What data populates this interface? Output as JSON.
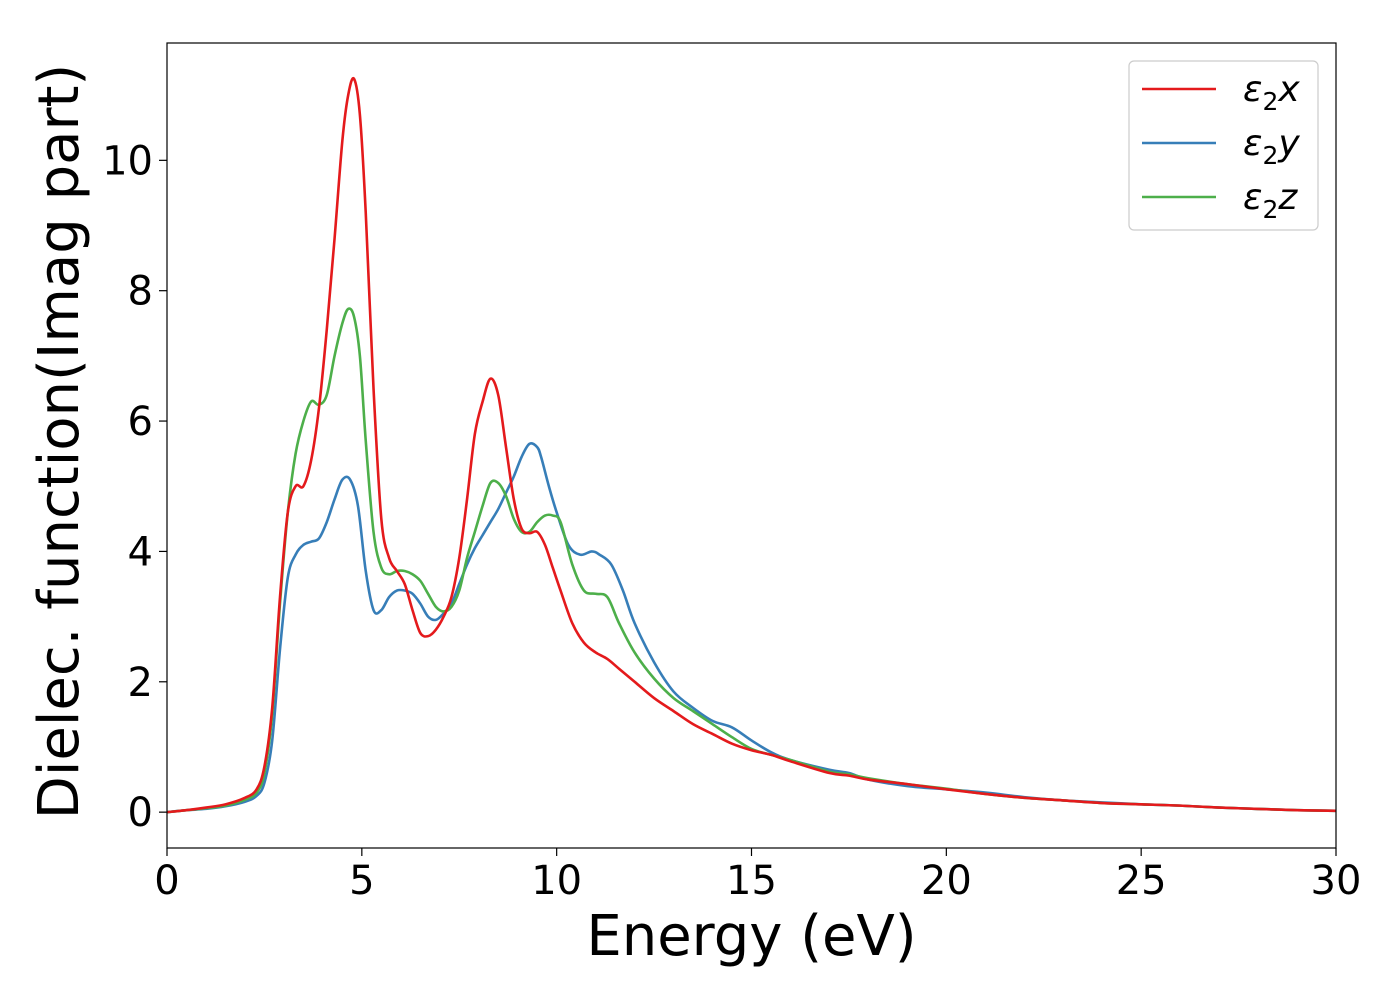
{
  "chart_data": {
    "type": "line",
    "title": "",
    "xlabel": "Energy (eV)",
    "ylabel": "Dielec. function(Imag part)",
    "xlim": [
      0,
      30
    ],
    "ylim": [
      -0.55,
      11.8
    ],
    "xticks": [
      0,
      5,
      10,
      15,
      20,
      25,
      30
    ],
    "yticks": [
      0,
      2,
      4,
      6,
      8,
      10
    ],
    "grid": false,
    "legend_position": "top-right",
    "series": [
      {
        "name": "ε₂x",
        "legend_main": "ε",
        "legend_sub": "2",
        "legend_suffix": "x",
        "color": "#e41a1c",
        "x": [
          0,
          0.5,
          1,
          1.5,
          2,
          2.3,
          2.5,
          2.7,
          2.9,
          3.1,
          3.3,
          3.5,
          3.7,
          3.9,
          4.1,
          4.3,
          4.5,
          4.65,
          4.8,
          4.95,
          5.1,
          5.3,
          5.5,
          5.7,
          5.9,
          6.1,
          6.3,
          6.5,
          6.7,
          6.9,
          7.1,
          7.3,
          7.5,
          7.7,
          7.9,
          8.1,
          8.3,
          8.5,
          8.7,
          8.9,
          9.1,
          9.3,
          9.5,
          9.7,
          9.9,
          10.1,
          10.4,
          10.7,
          11,
          11.3,
          11.6,
          12,
          12.5,
          13,
          13.5,
          14,
          14.5,
          15,
          15.5,
          16,
          17,
          17.5,
          18,
          19,
          20,
          21,
          22,
          23,
          24,
          25,
          26,
          27,
          28,
          29,
          30
        ],
        "y": [
          0.0,
          0.03,
          0.07,
          0.12,
          0.22,
          0.35,
          0.7,
          1.6,
          3.3,
          4.6,
          5.0,
          5.0,
          5.4,
          6.2,
          7.4,
          8.8,
          10.3,
          11.0,
          11.25,
          10.7,
          9.2,
          6.5,
          4.5,
          3.9,
          3.7,
          3.5,
          3.1,
          2.75,
          2.7,
          2.8,
          3.0,
          3.3,
          3.9,
          4.8,
          5.8,
          6.3,
          6.65,
          6.4,
          5.6,
          4.8,
          4.35,
          4.28,
          4.3,
          4.1,
          3.75,
          3.4,
          2.9,
          2.6,
          2.45,
          2.35,
          2.2,
          2.0,
          1.75,
          1.55,
          1.35,
          1.2,
          1.05,
          0.95,
          0.88,
          0.78,
          0.6,
          0.56,
          0.5,
          0.43,
          0.35,
          0.28,
          0.22,
          0.18,
          0.14,
          0.12,
          0.1,
          0.07,
          0.05,
          0.03,
          0.02
        ]
      },
      {
        "name": "ε₂y",
        "legend_main": "ε",
        "legend_sub": "2",
        "legend_suffix": "y",
        "color": "#377eb8",
        "x": [
          0,
          0.5,
          1,
          1.5,
          2,
          2.3,
          2.5,
          2.7,
          2.9,
          3.1,
          3.3,
          3.5,
          3.7,
          3.9,
          4.1,
          4.3,
          4.5,
          4.7,
          4.9,
          5.1,
          5.3,
          5.5,
          5.7,
          5.9,
          6.1,
          6.3,
          6.5,
          6.7,
          6.9,
          7.1,
          7.3,
          7.5,
          7.7,
          7.9,
          8.1,
          8.3,
          8.5,
          8.7,
          8.9,
          9.1,
          9.3,
          9.5,
          9.6,
          9.8,
          10,
          10.3,
          10.6,
          10.9,
          11.1,
          11.4,
          11.7,
          12,
          12.5,
          13,
          13.5,
          14,
          14.5,
          15,
          15.5,
          16,
          17,
          17.5,
          18,
          19,
          20,
          21,
          22,
          23,
          24,
          25,
          26,
          27,
          28,
          29,
          30
        ],
        "y": [
          0.0,
          0.03,
          0.05,
          0.09,
          0.16,
          0.25,
          0.45,
          1.1,
          2.5,
          3.6,
          3.95,
          4.1,
          4.15,
          4.2,
          4.45,
          4.8,
          5.1,
          5.1,
          4.7,
          3.7,
          3.1,
          3.1,
          3.3,
          3.4,
          3.4,
          3.35,
          3.2,
          3.0,
          2.95,
          3.05,
          3.2,
          3.5,
          3.8,
          4.05,
          4.25,
          4.45,
          4.65,
          4.9,
          5.15,
          5.45,
          5.65,
          5.6,
          5.45,
          5.0,
          4.6,
          4.1,
          3.95,
          4.0,
          3.95,
          3.8,
          3.4,
          2.9,
          2.3,
          1.85,
          1.6,
          1.4,
          1.3,
          1.1,
          0.92,
          0.8,
          0.65,
          0.6,
          0.5,
          0.4,
          0.35,
          0.3,
          0.23,
          0.18,
          0.15,
          0.12,
          0.1,
          0.07,
          0.05,
          0.03,
          0.02
        ]
      },
      {
        "name": "ε₂z",
        "legend_main": "ε",
        "legend_sub": "2",
        "legend_suffix": "z",
        "color": "#4daf4a",
        "x": [
          0,
          0.5,
          1,
          1.5,
          2,
          2.3,
          2.5,
          2.7,
          2.9,
          3.1,
          3.3,
          3.5,
          3.7,
          3.9,
          4.1,
          4.3,
          4.5,
          4.65,
          4.8,
          4.95,
          5.1,
          5.3,
          5.5,
          5.7,
          5.9,
          6.1,
          6.3,
          6.5,
          6.7,
          6.9,
          7.1,
          7.3,
          7.5,
          7.7,
          7.9,
          8.1,
          8.3,
          8.5,
          8.7,
          8.9,
          9.1,
          9.3,
          9.5,
          9.7,
          9.9,
          10.1,
          10.4,
          10.7,
          11,
          11.3,
          11.6,
          12,
          12.5,
          13,
          13.5,
          14,
          14.5,
          15,
          15.5,
          16,
          17,
          17.5,
          18,
          19,
          20,
          21,
          22,
          23,
          24,
          25,
          26,
          27,
          28,
          29,
          30
        ],
        "y": [
          0.0,
          0.03,
          0.06,
          0.1,
          0.19,
          0.3,
          0.6,
          1.5,
          3.2,
          4.6,
          5.5,
          6.0,
          6.3,
          6.25,
          6.4,
          7.0,
          7.5,
          7.72,
          7.6,
          7.0,
          5.7,
          4.3,
          3.75,
          3.65,
          3.7,
          3.7,
          3.65,
          3.55,
          3.35,
          3.15,
          3.08,
          3.15,
          3.4,
          3.9,
          4.3,
          4.7,
          5.05,
          5.05,
          4.85,
          4.5,
          4.3,
          4.3,
          4.45,
          4.55,
          4.55,
          4.45,
          3.8,
          3.4,
          3.35,
          3.3,
          2.9,
          2.45,
          2.05,
          1.75,
          1.55,
          1.35,
          1.15,
          0.97,
          0.88,
          0.8,
          0.62,
          0.58,
          0.52,
          0.43,
          0.36,
          0.28,
          0.22,
          0.18,
          0.14,
          0.12,
          0.1,
          0.07,
          0.05,
          0.03,
          0.02
        ]
      }
    ]
  }
}
